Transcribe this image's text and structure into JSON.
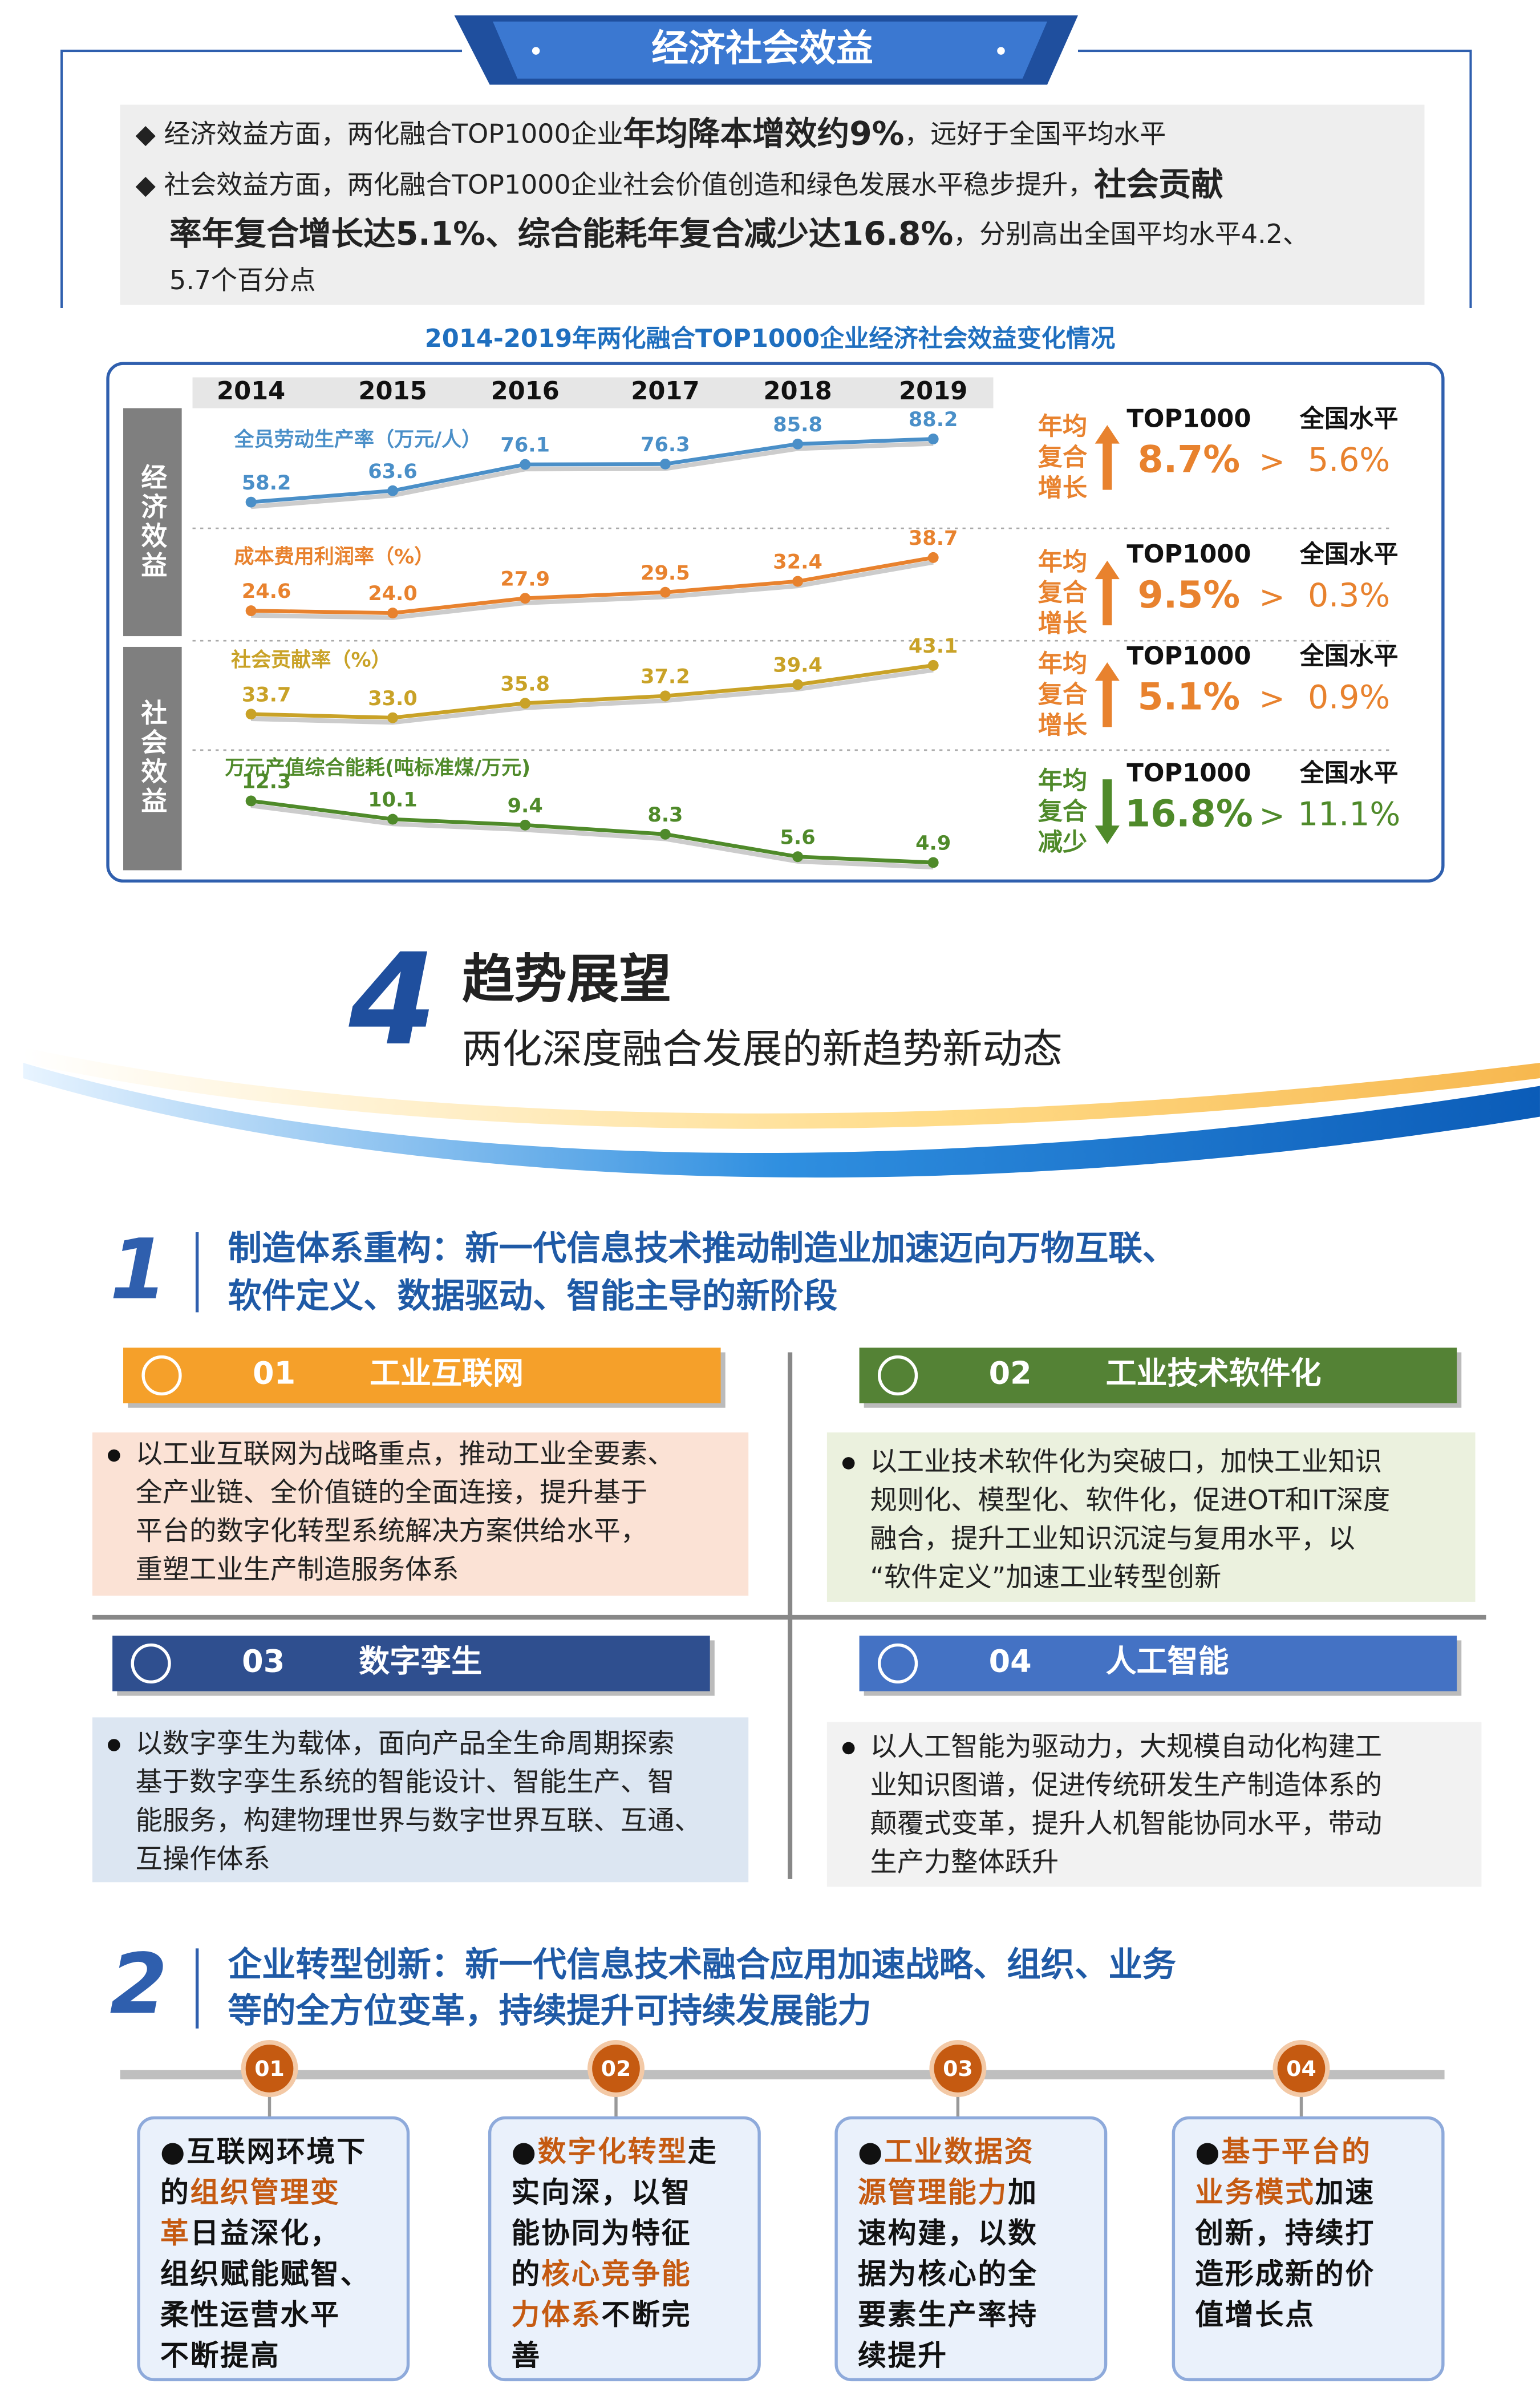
{
  "section1": {
    "title": "经济社会效益",
    "lines": [
      [
        "◆ 经济效益方面，两化融合TOP1000企业",
        {
          "text": "年均降本增效约9%",
          "emphasis": true
        },
        "，远好于全国平均水平"
      ],
      [
        "◆ 社会效益方面，两化融合TOP1000企业社会价值创造和绿色发展水平稳步提升，",
        {
          "text": "社会贡献",
          "emphasis": true
        }
      ],
      [
        {
          "text": "率年复合增长达5.1%、综合能耗年复合减少达16.8%",
          "emphasis": true
        },
        "，分别高出全国平均水平4.2、"
      ],
      [
        "5.7个百分点"
      ]
    ]
  },
  "chart_data": {
    "type": "line",
    "title": "2014-2019年两化融合TOP1000企业经济社会效益变化情况",
    "categories": [
      "2014",
      "2015",
      "2016",
      "2017",
      "2018",
      "2019"
    ],
    "groups": [
      "经济效益",
      "社会效益"
    ],
    "series": [
      {
        "name": "全员劳动生产率（万元/人）",
        "color": "#4a8fc8",
        "values": [
          58.2,
          63.6,
          76.1,
          76.3,
          85.8,
          88.2
        ]
      },
      {
        "name": "成本费用利润率（%）",
        "color": "#e8822e",
        "values": [
          24.6,
          24,
          27.9,
          29.5,
          32.4,
          38.7
        ],
        "value_labels": [
          "24.6",
          "24.0",
          "27.9",
          "29.5",
          "32.4",
          "38.7"
        ]
      },
      {
        "name": "社会贡献率（%）",
        "color": "#c9a227",
        "values": [
          33.7,
          33,
          35.8,
          37.2,
          39.4,
          43.1
        ],
        "value_labels": [
          "33.7",
          "33.0",
          "35.8",
          "37.2",
          "39.4",
          "43.1"
        ]
      },
      {
        "name": "万元产值综合能耗(吨标准煤/万元)",
        "color": "#4f8a2a",
        "values": [
          12.3,
          10.1,
          9.4,
          8.3,
          5.6,
          4.9
        ]
      }
    ],
    "stats": [
      {
        "trend": [
          "年均",
          "复合",
          "增长"
        ],
        "top_label": "TOP1000",
        "national_label": "全国水平",
        "top_value": "8.7%",
        "sign": ">",
        "national_value": "5.6%"
      },
      {
        "trend": [
          "年均",
          "复合",
          "增长"
        ],
        "top_label": "TOP1000",
        "national_label": "全国水平",
        "top_value": "9.5%",
        "sign": ">",
        "national_value": "0.3%"
      },
      {
        "trend": [
          "年均",
          "复合",
          "增长"
        ],
        "top_label": "TOP1000",
        "national_label": "全国水平",
        "top_value": "5.1%",
        "sign": ">",
        "national_value": "0.9%"
      },
      {
        "trend": [
          "年均",
          "复合",
          "减少"
        ],
        "top_label": "TOP1000",
        "national_label": "全国水平",
        "top_value": "16.8%",
        "sign": ">",
        "national_value": "11.1%"
      }
    ]
  },
  "section4": {
    "number": "4",
    "title": "趋势展望",
    "subtitle": "两化深度融合发展的新趋势新动态",
    "item1": {
      "number": "1",
      "heading": [
        "制造体系重构：新一代信息技术推动制造业加速迈向万物互联、",
        "软件定义、数据驱动、智能主导的新阶段"
      ],
      "cards": [
        {
          "index": "01",
          "title": "工业互联网",
          "lines": [
            "以工业互联网为战略重点，推动工业全要素、",
            "全产业链、全价值链的全面连接，提升基于",
            "平台的数字化转型系统解决方案供给水平，",
            "重塑工业生产制造服务体系"
          ]
        },
        {
          "index": "02",
          "title": "工业技术软件化",
          "lines": [
            "以工业技术软件化为突破口，加快工业知识",
            "规则化、模型化、软件化，促进OT和IT深度",
            "融合，提升工业知识沉淀与复用水平，以",
            "“软件定义”加速工业转型创新"
          ]
        },
        {
          "index": "03",
          "title": "数字孪生",
          "lines": [
            "以数字孪生为载体，面向产品全生命周期探索",
            "基于数字孪生系统的智能设计、智能生产、智",
            "能服务，构建物理世界与数字世界互联、互通、",
            "互操作体系"
          ]
        },
        {
          "index": "04",
          "title": "人工智能",
          "lines": [
            "以人工智能为驱动力，大规模自动化构建工",
            "业知识图谱，促进传统研发生产制造体系的",
            "颠覆式变革，提升人机智能协同水平，带动",
            "生产力整体跃升"
          ]
        }
      ]
    },
    "item2": {
      "number": "2",
      "heading": [
        "企业转型创新：新一代信息技术融合应用加速战略、组织、业务",
        "等的全方位变革，持续提升可持续发展能力"
      ],
      "steps": [
        {
          "index": "01",
          "lines": [
            [
              "●互联网环境下"
            ],
            [
              "的",
              {
                "text": "组织管理变",
                "emphasis": true
              }
            ],
            [
              {
                "text": "革",
                "emphasis": true
              },
              "日益深化，"
            ],
            [
              "组织赋能赋智、"
            ],
            [
              "柔性运营水平"
            ],
            [
              "不断提高"
            ]
          ]
        },
        {
          "index": "02",
          "lines": [
            [
              "●",
              {
                "text": "数字化转型",
                "emphasis": true
              },
              "走"
            ],
            [
              "实向深，以智"
            ],
            [
              "能协同为特征"
            ],
            [
              "的",
              {
                "text": "核心竞争能",
                "emphasis": true
              }
            ],
            [
              {
                "text": "力体系",
                "emphasis": true
              },
              "不断完"
            ],
            [
              "善"
            ]
          ]
        },
        {
          "index": "03",
          "lines": [
            [
              "●",
              {
                "text": "工业数据资",
                "emphasis": true
              }
            ],
            [
              {
                "text": "源管理能力",
                "emphasis": true
              },
              "加"
            ],
            [
              "速构建，以数"
            ],
            [
              "据为核心的全"
            ],
            [
              "要素生产率持"
            ],
            [
              "续提升"
            ]
          ]
        },
        {
          "index": "04",
          "lines": [
            [
              "●",
              {
                "text": "基于平台的",
                "emphasis": true
              }
            ],
            [
              {
                "text": "业务模式",
                "emphasis": true
              },
              "加速"
            ],
            [
              "创新，持续打"
            ],
            [
              "造形成新的价"
            ],
            [
              "值增长点"
            ]
          ]
        }
      ]
    }
  }
}
